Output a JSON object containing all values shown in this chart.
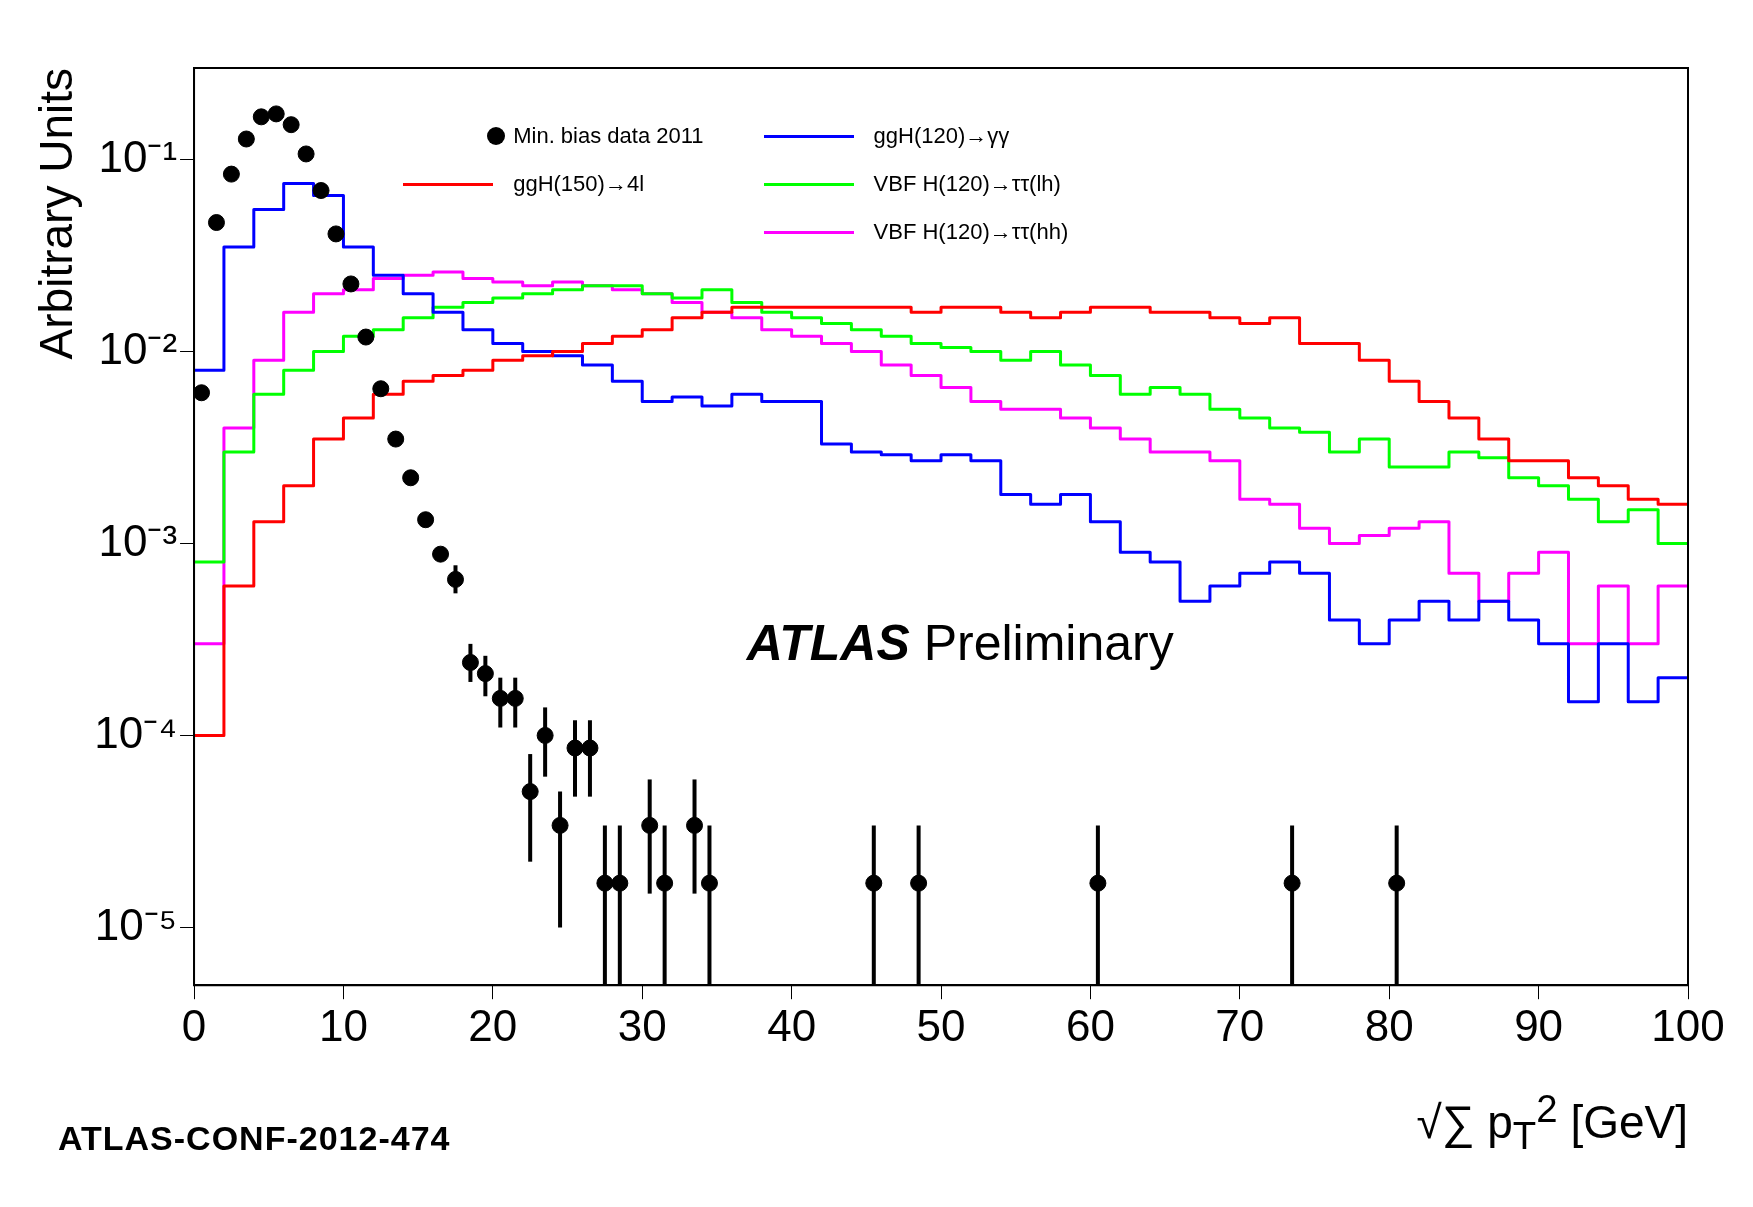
{
  "chart_data": {
    "type": "histogram",
    "xlabel": "√∑ p$_{T}$$^{2}$ [GeV]",
    "ylabel": "Arbitrary Units",
    "annotations": [
      "ATLAS Preliminary",
      "ATLAS-CONF-2012-474"
    ],
    "bins": [
      0,
      2,
      4,
      6,
      8,
      10,
      12,
      14,
      16,
      18,
      20,
      22,
      24,
      26,
      28,
      30,
      32,
      34,
      36,
      38,
      40,
      42,
      44,
      46,
      48,
      50,
      52,
      54,
      56,
      58,
      60,
      62,
      64,
      66,
      68,
      70,
      72,
      74,
      76,
      78,
      80,
      82,
      84,
      86,
      88,
      90,
      92,
      94,
      96,
      98,
      100
    ],
    "series": [
      {
        "name": "Min. bias data 2011",
        "type": "scatter",
        "color": "#000000",
        "marker": "circle",
        "x": [
          0.5,
          1.5,
          2.5,
          3.5,
          4.5,
          5.5,
          6.5,
          7.5,
          8.5,
          9.5,
          10.5,
          11.5,
          12.5,
          13.5,
          14.5,
          15.5,
          16.5,
          17.5,
          18.5,
          19.5,
          20.5,
          21.5,
          22.5,
          23.5,
          24.5,
          25.5,
          26.5,
          27.5,
          28.5,
          30.5,
          31.5,
          33.5,
          34.5,
          45.5,
          48.5,
          60.5,
          73.5,
          80.5
        ],
        "values": [
          0.0061,
          0.047,
          0.084,
          0.128,
          0.167,
          0.173,
          0.152,
          0.107,
          0.069,
          0.041,
          0.0225,
          0.0119,
          0.0064,
          0.0035,
          0.0022,
          0.00133,
          0.00088,
          0.00065,
          0.00024,
          0.00021,
          0.000156,
          0.000156,
          5.1e-05,
          0.0001,
          3.4e-05,
          8.6e-05,
          8.6e-05,
          1.7e-05,
          1.7e-05,
          3.4e-05,
          1.7e-05,
          3.4e-05,
          1.7e-05,
          1.7e-05,
          1.7e-05,
          1.7e-05,
          1.7e-05,
          1.7e-05
        ],
        "errors": [
          null,
          null,
          null,
          null,
          null,
          null,
          null,
          null,
          null,
          null,
          null,
          null,
          null,
          null,
          null,
          null,
          null,
          [
            0.00055,
            0.00077
          ],
          [
            0.00019,
            0.0003
          ],
          [
            0.00016,
            0.00026
          ],
          [
            0.00011,
            0.0002
          ],
          [
            0.00011,
            0.0002
          ],
          [
            2.2e-05,
            8e-05
          ],
          [
            6.1e-05,
            0.00014
          ],
          [
            1e-05,
            5.1e-05
          ],
          [
            4.8e-05,
            0.00012
          ],
          [
            4.8e-05,
            0.00012
          ],
          [
            5e-06,
            3.4e-05
          ],
          [
            5e-06,
            3.4e-05
          ],
          [
            1.5e-05,
            5.9e-05
          ],
          [
            5e-06,
            3.4e-05
          ],
          [
            1.5e-05,
            5.9e-05
          ],
          [
            5e-06,
            3.4e-05
          ],
          [
            5e-06,
            3.4e-05
          ],
          [
            5e-06,
            3.4e-05
          ],
          [
            5e-06,
            3.4e-05
          ],
          [
            5e-06,
            3.4e-05
          ],
          [
            5e-06,
            3.4e-05
          ]
        ]
      },
      {
        "name": "ggH(150)→4l",
        "color": "#ff0000",
        "values": [
          0.0001,
          0.0006,
          0.0013,
          0.002,
          0.0035,
          0.0045,
          0.006,
          0.007,
          0.0075,
          0.008,
          0.009,
          0.0095,
          0.01,
          0.011,
          0.012,
          0.013,
          0.015,
          0.016,
          0.017,
          0.017,
          0.017,
          0.017,
          0.017,
          0.017,
          0.016,
          0.017,
          0.017,
          0.016,
          0.015,
          0.016,
          0.017,
          0.017,
          0.016,
          0.016,
          0.015,
          0.014,
          0.015,
          0.011,
          0.011,
          0.009,
          0.007,
          0.0055,
          0.0045,
          0.0035,
          0.0027,
          0.0027,
          0.0022,
          0.002,
          0.0017,
          0.0016
        ]
      },
      {
        "name": "ggH(120)→γγ",
        "color": "#0000ff",
        "values": [
          0.008,
          0.035,
          0.055,
          0.075,
          0.065,
          0.035,
          0.025,
          0.02,
          0.016,
          0.013,
          0.011,
          0.01,
          0.0095,
          0.0085,
          0.007,
          0.0055,
          0.0058,
          0.0052,
          0.006,
          0.0055,
          0.0055,
          0.0033,
          0.003,
          0.0029,
          0.0027,
          0.0029,
          0.0027,
          0.0018,
          0.0016,
          0.0018,
          0.0013,
          0.0009,
          0.0008,
          0.0005,
          0.0006,
          0.0007,
          0.0008,
          0.0007,
          0.0004,
          0.0003,
          0.0004,
          0.0005,
          0.0004,
          0.0005,
          0.0004,
          0.0003,
          0.00015,
          0.0003,
          0.00015,
          0.0002
        ]
      },
      {
        "name": "VBF H(120)→ττ(lh)",
        "color": "#00ff00",
        "values": [
          0.0008,
          0.003,
          0.006,
          0.008,
          0.01,
          0.012,
          0.013,
          0.015,
          0.017,
          0.018,
          0.019,
          0.02,
          0.021,
          0.022,
          0.022,
          0.02,
          0.019,
          0.021,
          0.018,
          0.016,
          0.015,
          0.014,
          0.013,
          0.012,
          0.011,
          0.0105,
          0.01,
          0.009,
          0.01,
          0.0085,
          0.0075,
          0.006,
          0.0065,
          0.006,
          0.005,
          0.0045,
          0.004,
          0.0038,
          0.003,
          0.0035,
          0.0025,
          0.0025,
          0.003,
          0.0028,
          0.0022,
          0.002,
          0.0017,
          0.0013,
          0.0015,
          0.001
        ]
      },
      {
        "name": "VBF H(120)→ττ(hh)",
        "color": "#ff00ff",
        "values": [
          0.0003,
          0.004,
          0.009,
          0.016,
          0.02,
          0.021,
          0.024,
          0.025,
          0.026,
          0.024,
          0.023,
          0.022,
          0.023,
          0.022,
          0.021,
          0.02,
          0.018,
          0.016,
          0.015,
          0.013,
          0.012,
          0.011,
          0.01,
          0.0085,
          0.0075,
          0.0065,
          0.0055,
          0.005,
          0.005,
          0.0045,
          0.004,
          0.0035,
          0.003,
          0.003,
          0.0027,
          0.0017,
          0.0016,
          0.0012,
          0.001,
          0.0011,
          0.0012,
          0.0013,
          0.0007,
          0.0005,
          0.0007,
          0.0009,
          0.0003,
          0.0006,
          0.0003,
          0.0006
        ]
      }
    ],
    "xlim": [
      0,
      100
    ],
    "xticks": [
      0,
      10,
      20,
      30,
      40,
      50,
      60,
      70,
      80,
      90,
      100
    ],
    "ylim": [
      5e-06,
      0.3
    ],
    "yticks": [
      {
        "value": 1e-05,
        "label": "10⁻⁵"
      },
      {
        "value": 0.0001,
        "label": "10⁻⁴"
      },
      {
        "value": 0.001,
        "label": "10⁻³"
      },
      {
        "value": 0.01,
        "label": "10⁻²"
      },
      {
        "value": 0.1,
        "label": "10⁻¹"
      }
    ],
    "log": "y",
    "line_style": "solid",
    "legend": "top"
  }
}
